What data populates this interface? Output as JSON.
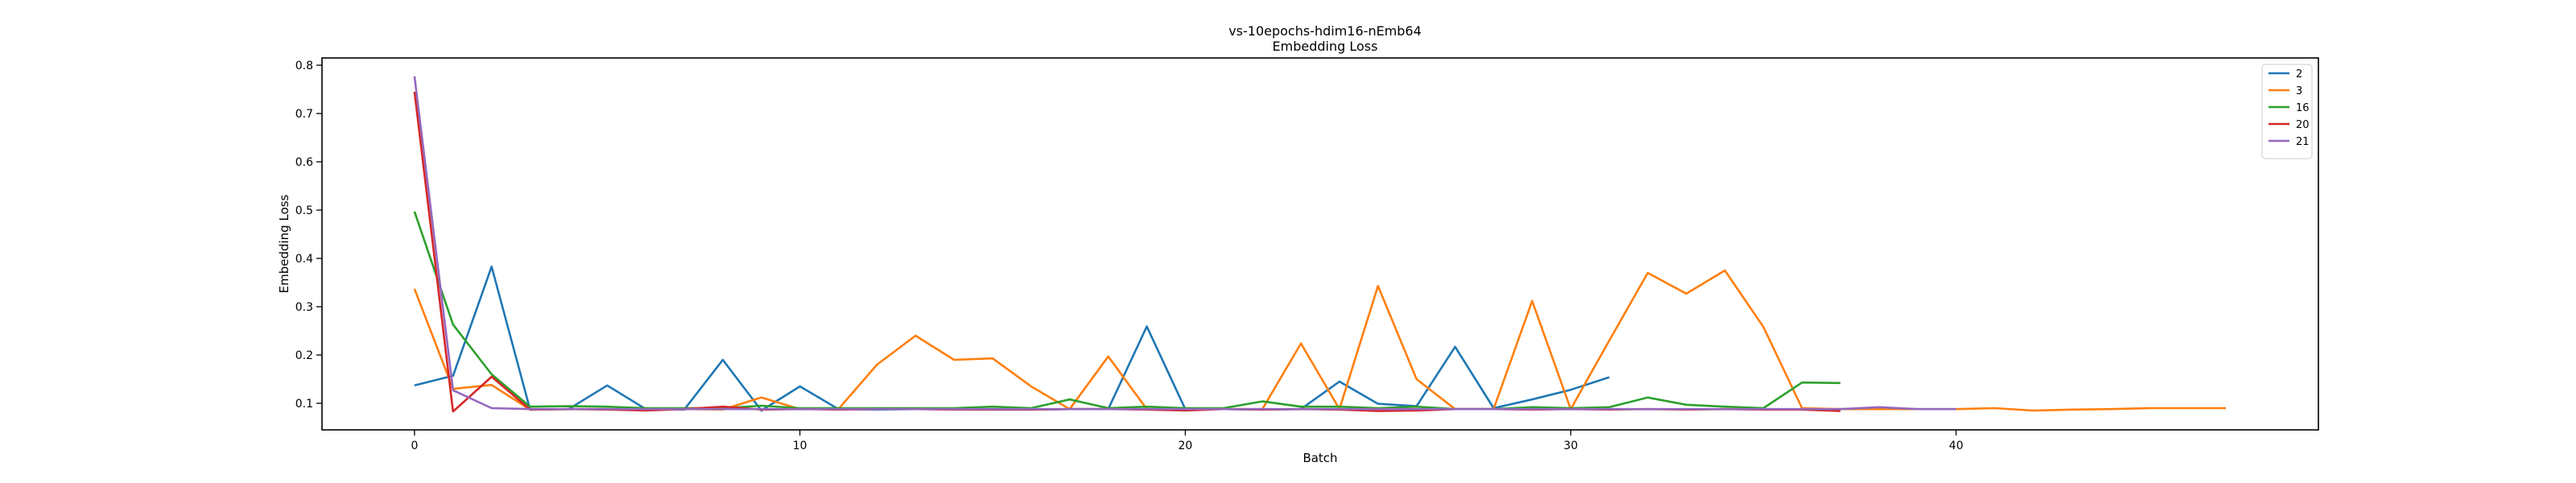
{
  "chart_data": {
    "type": "line",
    "title": "vs-10epochs-hdim16-nEmb64",
    "subtitle": "Embedding Loss",
    "xlabel": "Batch",
    "ylabel": "Embedding Loss",
    "xlim": [
      -2.4,
      49.4
    ],
    "ylim": [
      0.045,
      0.815
    ],
    "xticks": [
      0,
      10,
      20,
      30,
      40
    ],
    "yticks": [
      0.1,
      0.2,
      0.3,
      0.4,
      0.5,
      0.6,
      0.7,
      0.8
    ],
    "ytick_labels": [
      "0.1",
      "0.2",
      "0.3",
      "0.4",
      "0.5",
      "0.6",
      "0.7",
      "0.8"
    ],
    "legend_position": "top-right",
    "grid": false,
    "series": [
      {
        "name": "2",
        "color": "#1f77b4",
        "values": [
          0.137,
          0.157,
          0.383,
          0.087,
          0.088,
          0.137,
          0.088,
          0.087,
          0.19,
          0.085,
          0.135,
          0.088,
          0.087,
          0.088,
          0.088,
          0.087,
          0.087,
          0.088,
          0.088,
          0.259,
          0.088,
          0.088,
          0.087,
          0.088,
          0.145,
          0.099,
          0.094,
          0.217,
          0.09,
          0.108,
          0.128,
          0.154
        ]
      },
      {
        "name": "3",
        "color": "#ff7f0e",
        "values": [
          0.337,
          0.13,
          0.138,
          0.087,
          0.088,
          0.088,
          0.087,
          0.088,
          0.087,
          0.112,
          0.088,
          0.088,
          0.18,
          0.24,
          0.19,
          0.193,
          0.135,
          0.088,
          0.197,
          0.088,
          0.088,
          0.088,
          0.088,
          0.224,
          0.088,
          0.343,
          0.15,
          0.088,
          0.088,
          0.312,
          0.088,
          0.23,
          0.37,
          0.327,
          0.375,
          0.258,
          0.09,
          0.088,
          0.088,
          0.088,
          0.088,
          0.09,
          0.085,
          0.087,
          0.088,
          0.09,
          0.09,
          0.09
        ]
      },
      {
        "name": "16",
        "color": "#2ca02c",
        "values": [
          0.497,
          0.263,
          0.16,
          0.093,
          0.094,
          0.093,
          0.09,
          0.09,
          0.09,
          0.095,
          0.09,
          0.09,
          0.09,
          0.09,
          0.09,
          0.093,
          0.09,
          0.108,
          0.09,
          0.093,
          0.09,
          0.09,
          0.104,
          0.093,
          0.093,
          0.09,
          0.093,
          0.088,
          0.088,
          0.092,
          0.09,
          0.092,
          0.112,
          0.097,
          0.093,
          0.09,
          0.143,
          0.142
        ]
      },
      {
        "name": "20",
        "color": "#d62728",
        "values": [
          0.745,
          0.083,
          0.155,
          0.087,
          0.088,
          0.087,
          0.085,
          0.088,
          0.093,
          0.087,
          0.088,
          0.087,
          0.088,
          0.088,
          0.087,
          0.087,
          0.087,
          0.088,
          0.088,
          0.087,
          0.085,
          0.088,
          0.087,
          0.088,
          0.087,
          0.084,
          0.085,
          0.088,
          0.088,
          0.087,
          0.088,
          0.087,
          0.088,
          0.087,
          0.088,
          0.087,
          0.087,
          0.084
        ]
      },
      {
        "name": "21",
        "color": "#9467bd",
        "values": [
          0.777,
          0.127,
          0.09,
          0.088,
          0.088,
          0.088,
          0.088,
          0.088,
          0.088,
          0.088,
          0.088,
          0.088,
          0.088,
          0.088,
          0.088,
          0.088,
          0.088,
          0.088,
          0.088,
          0.088,
          0.088,
          0.088,
          0.088,
          0.088,
          0.088,
          0.088,
          0.088,
          0.088,
          0.088,
          0.088,
          0.088,
          0.088,
          0.088,
          0.088,
          0.088,
          0.088,
          0.088,
          0.088,
          0.092,
          0.088,
          0.088
        ]
      }
    ]
  }
}
